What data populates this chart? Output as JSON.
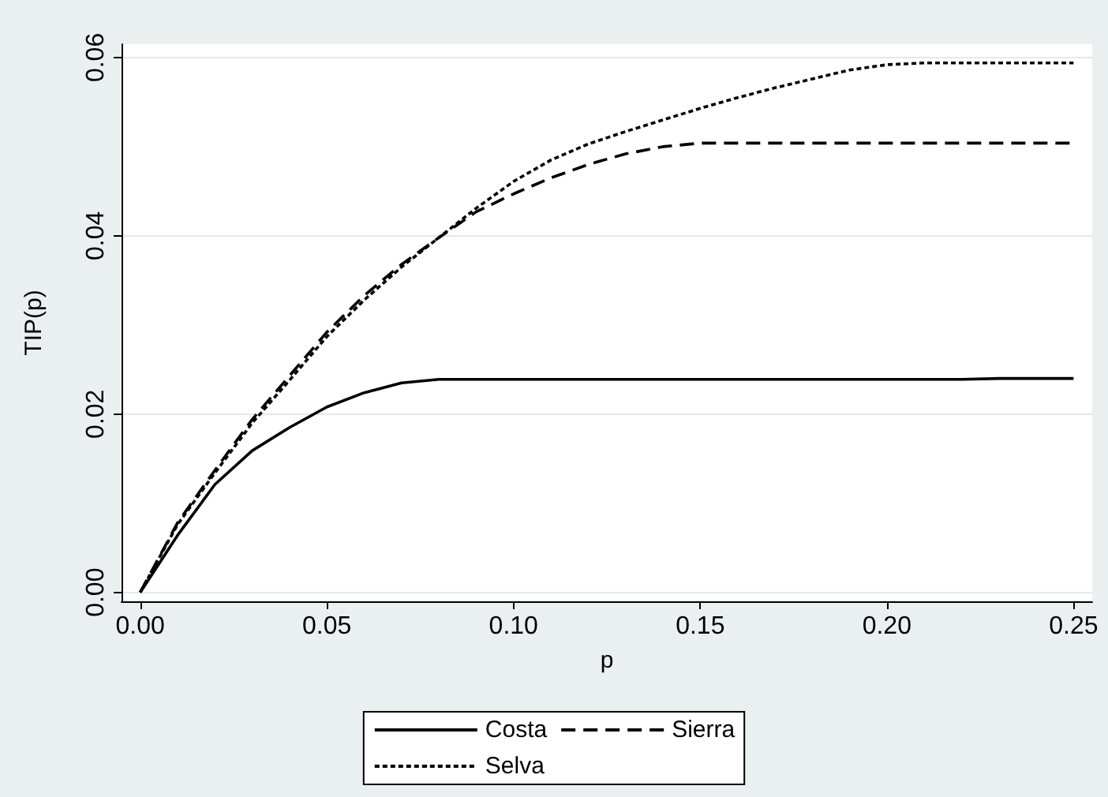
{
  "chart_data": {
    "type": "line",
    "xlabel": "p",
    "ylabel": "TIP(p)",
    "xlim": [
      -0.005,
      0.255
    ],
    "xticks": [
      {
        "value": 0,
        "label": "0.00"
      },
      {
        "value": 0.05,
        "label": "0.05"
      },
      {
        "value": 0.1,
        "label": "0.10"
      },
      {
        "value": 0.15,
        "label": "0.15"
      },
      {
        "value": 0.2,
        "label": "0.20"
      },
      {
        "value": 0.25,
        "label": "0.25"
      }
    ],
    "ylim": [
      -0.001,
      0.0615
    ],
    "yticks": [
      {
        "value": 0,
        "label": "0.00"
      },
      {
        "value": 0.02,
        "label": "0.02"
      },
      {
        "value": 0.04,
        "label": "0.04"
      },
      {
        "value": 0.06,
        "label": "0.06"
      }
    ],
    "grid": "y",
    "legend": "bottom",
    "marker": "none",
    "x": [
      0,
      0.01,
      0.02,
      0.03,
      0.04,
      0.05,
      0.06,
      0.07,
      0.08,
      0.09,
      0.1,
      0.11,
      0.12,
      0.13,
      0.14,
      0.15,
      0.16,
      0.17,
      0.18,
      0.19,
      0.2,
      0.21,
      0.22,
      0.23,
      0.24,
      0.25
    ],
    "series": [
      {
        "name": "Costa",
        "color": "#000000",
        "line_style": "solid",
        "values": [
          0,
          0.0064,
          0.0121,
          0.0159,
          0.0185,
          0.0208,
          0.0224,
          0.0235,
          0.0239,
          0.0239,
          0.0239,
          0.0239,
          0.0239,
          0.0239,
          0.0239,
          0.0239,
          0.0239,
          0.0239,
          0.0239,
          0.0239,
          0.0239,
          0.0239,
          0.0239,
          0.024,
          0.024,
          0.024
        ]
      },
      {
        "name": "Sierra",
        "color": "#000000",
        "line_style": "dashed",
        "values": [
          0,
          0.0078,
          0.0137,
          0.0194,
          0.0243,
          0.0292,
          0.0333,
          0.0368,
          0.0398,
          0.0427,
          0.0447,
          0.0465,
          0.048,
          0.0492,
          0.05,
          0.0504,
          0.0504,
          0.0504,
          0.0504,
          0.0504,
          0.0504,
          0.0504,
          0.0504,
          0.0504,
          0.0504,
          0.0504
        ]
      },
      {
        "name": "Selva",
        "color": "#000000",
        "line_style": "dotted",
        "values": [
          0,
          0.0076,
          0.0134,
          0.019,
          0.0238,
          0.0287,
          0.0328,
          0.0365,
          0.0398,
          0.0431,
          0.0461,
          0.0485,
          0.0503,
          0.0517,
          0.053,
          0.0543,
          0.0555,
          0.0566,
          0.0576,
          0.0586,
          0.0592,
          0.0594,
          0.0594,
          0.0594,
          0.0594,
          0.0594
        ]
      }
    ]
  }
}
